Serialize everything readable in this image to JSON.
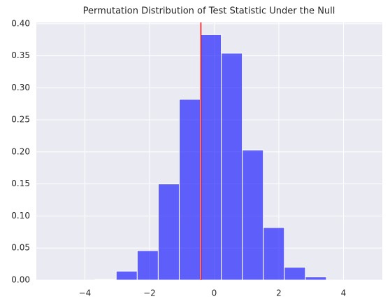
{
  "chart_data": {
    "type": "histogram",
    "title": "Permutation Distribution of Test Statistic Under the Null",
    "bins": [
      -3.68,
      -3.03,
      -2.38,
      -1.73,
      -1.08,
      -0.43,
      0.22,
      0.87,
      1.52,
      2.17,
      2.82,
      3.47
    ],
    "values": [
      0.001,
      0.014,
      0.046,
      0.15,
      0.282,
      0.383,
      0.354,
      0.203,
      0.082,
      0.02,
      0.005
    ],
    "color": "#0000ff",
    "opacity": 0.6,
    "xlim": [
      -5.5,
      5.2
    ],
    "ylim": [
      0,
      0.402
    ],
    "xticks": [
      {
        "value": -4,
        "label": "−4"
      },
      {
        "value": -2,
        "label": "−2"
      },
      0,
      2,
      4
    ],
    "yticks": [
      {
        "value": 0,
        "label": "0.00"
      },
      {
        "value": 0.05,
        "label": "0.05"
      },
      {
        "value": 0.1,
        "label": "0.10"
      },
      {
        "value": 0.15,
        "label": "0.15"
      },
      {
        "value": 0.2,
        "label": "0.20"
      },
      {
        "value": 0.25,
        "label": "0.25"
      },
      {
        "value": 0.3,
        "label": "0.30"
      },
      {
        "value": 0.35,
        "label": "0.35"
      },
      {
        "value": 0.4,
        "label": "0.40"
      }
    ],
    "grid": true,
    "vline": {
      "x": -0.41,
      "color": "#ff0000"
    }
  }
}
